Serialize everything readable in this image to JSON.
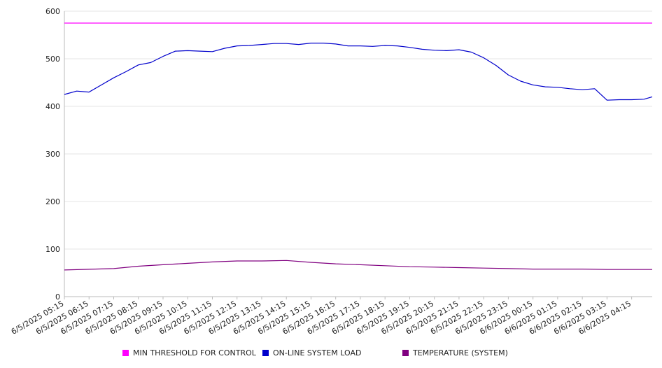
{
  "chart_data": {
    "type": "line",
    "title": "",
    "xlabel": "",
    "ylabel": "",
    "ylim": [
      0,
      600
    ],
    "yticks": [
      0,
      100,
      200,
      300,
      400,
      500,
      600
    ],
    "grid": true,
    "legend_position": "bottom",
    "x_ticks": [
      "6/5/2025 05:15",
      "6/5/2025 06:15",
      "6/5/2025 07:15",
      "6/5/2025 08:15",
      "6/5/2025 09:15",
      "6/5/2025 10:15",
      "6/5/2025 11:15",
      "6/5/2025 12:15",
      "6/5/2025 13:15",
      "6/5/2025 14:15",
      "6/5/2025 15:15",
      "6/5/2025 16:15",
      "6/5/2025 17:15",
      "6/5/2025 18:15",
      "6/5/2025 19:15",
      "6/5/2025 20:15",
      "6/5/2025 21:15",
      "6/5/2025 22:15",
      "6/5/2025 23:15",
      "6/6/2025 00:15",
      "6/6/2025 01:15",
      "6/6/2025 02:15",
      "6/6/2025 03:15",
      "6/6/2025 04:15"
    ],
    "x_start": "6/5/2025 05:15",
    "x_end": "6/6/2025 05:05",
    "series": [
      {
        "name": "MIN THRESHOLD FOR CONTROL",
        "color": "#ff00ff",
        "x": [
          "6/5/2025 05:15",
          "6/6/2025 05:05"
        ],
        "y": [
          575,
          575
        ]
      },
      {
        "name": "ON-LINE SYSTEM LOAD",
        "color": "#0000cc",
        "x": [
          "6/5/2025 05:15",
          "6/5/2025 05:45",
          "6/5/2025 06:15",
          "6/5/2025 06:45",
          "6/5/2025 07:15",
          "6/5/2025 07:45",
          "6/5/2025 08:15",
          "6/5/2025 08:45",
          "6/5/2025 09:15",
          "6/5/2025 09:45",
          "6/5/2025 10:15",
          "6/5/2025 10:45",
          "6/5/2025 11:15",
          "6/5/2025 11:45",
          "6/5/2025 12:15",
          "6/5/2025 12:45",
          "6/5/2025 13:15",
          "6/5/2025 13:45",
          "6/5/2025 14:15",
          "6/5/2025 14:45",
          "6/5/2025 15:15",
          "6/5/2025 15:45",
          "6/5/2025 16:15",
          "6/5/2025 16:45",
          "6/5/2025 17:15",
          "6/5/2025 17:45",
          "6/5/2025 18:15",
          "6/5/2025 18:45",
          "6/5/2025 19:15",
          "6/5/2025 19:45",
          "6/5/2025 20:15",
          "6/5/2025 20:45",
          "6/5/2025 21:15",
          "6/5/2025 21:45",
          "6/5/2025 22:15",
          "6/5/2025 22:45",
          "6/5/2025 23:15",
          "6/5/2025 23:45",
          "6/6/2025 00:15",
          "6/6/2025 00:45",
          "6/6/2025 01:15",
          "6/6/2025 01:45",
          "6/6/2025 02:15",
          "6/6/2025 02:45",
          "6/6/2025 03:15",
          "6/6/2025 03:45",
          "6/6/2025 04:15",
          "6/6/2025 04:45",
          "6/6/2025 05:05"
        ],
        "y": [
          425,
          432,
          430,
          445,
          460,
          473,
          487,
          492,
          505,
          516,
          517,
          516,
          515,
          522,
          527,
          528,
          530,
          532,
          532,
          530,
          533,
          533,
          531,
          527,
          527,
          526,
          528,
          527,
          524,
          520,
          518,
          517,
          519,
          514,
          502,
          486,
          466,
          453,
          445,
          441,
          440,
          437,
          435,
          437,
          413,
          414,
          414,
          415,
          420
        ]
      },
      {
        "name": "TEMPERATURE (SYSTEM)",
        "color": "#800080",
        "x": [
          "6/5/2025 05:15",
          "6/5/2025 07:15",
          "6/5/2025 08:15",
          "6/5/2025 09:15",
          "6/5/2025 10:15",
          "6/5/2025 11:15",
          "6/5/2025 12:15",
          "6/5/2025 13:15",
          "6/5/2025 14:15",
          "6/5/2025 15:15",
          "6/5/2025 16:15",
          "6/5/2025 17:15",
          "6/5/2025 18:15",
          "6/5/2025 19:15",
          "6/5/2025 20:15",
          "6/5/2025 21:15",
          "6/5/2025 22:15",
          "6/5/2025 23:15",
          "6/6/2025 00:15",
          "6/6/2025 01:15",
          "6/6/2025 02:15",
          "6/6/2025 03:15",
          "6/6/2025 04:15",
          "6/6/2025 05:05"
        ],
        "y": [
          56,
          59,
          64,
          67,
          70,
          73,
          75,
          75,
          76,
          72,
          69,
          67,
          65,
          63,
          62,
          61,
          60,
          59,
          58,
          58,
          58,
          57,
          57,
          57
        ]
      }
    ]
  }
}
